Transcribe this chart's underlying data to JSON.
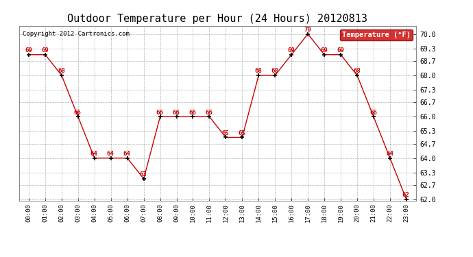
{
  "title": "Outdoor Temperature per Hour (24 Hours) 20120813",
  "copyright_text": "Copyright 2012 Cartronics.com",
  "legend_label": "Temperature (°F)",
  "hours": [
    "00:00",
    "01:00",
    "02:00",
    "03:00",
    "04:00",
    "05:00",
    "06:00",
    "07:00",
    "08:00",
    "09:00",
    "10:00",
    "11:00",
    "12:00",
    "13:00",
    "14:00",
    "15:00",
    "16:00",
    "17:00",
    "18:00",
    "19:00",
    "20:00",
    "21:00",
    "22:00",
    "23:00"
  ],
  "temps": [
    69,
    69,
    68,
    66,
    64,
    64,
    64,
    63,
    66,
    66,
    66,
    66,
    65,
    65,
    68,
    68,
    69,
    70,
    69,
    69,
    68,
    66,
    64,
    62
  ],
  "line_color": "#cc0000",
  "marker_color": "#000000",
  "label_color": "#cc0000",
  "background_color": "#ffffff",
  "grid_color": "#aaaaaa",
  "title_fontsize": 11,
  "ylim_min": 62.0,
  "ylim_max": 70.0,
  "yticks": [
    62.0,
    62.7,
    63.3,
    64.0,
    64.7,
    65.3,
    66.0,
    66.7,
    67.3,
    68.0,
    68.7,
    69.3,
    70.0
  ],
  "legend_bg": "#cc0000",
  "legend_text_color": "#ffffff"
}
